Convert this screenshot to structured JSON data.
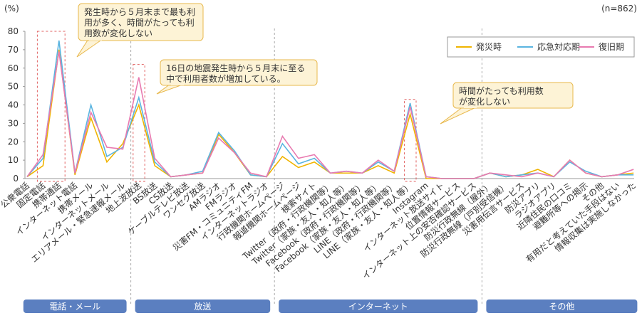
{
  "chart_data": {
    "type": "line",
    "y_unit_label": "(%)",
    "note": "(n=862)",
    "categories": [
      "公衆電話",
      "固定電話",
      "携帯通話",
      "インターネット電話",
      "携帯メール",
      "インターネットメール",
      "エリアメール・緊急速報メール",
      "地上波放送",
      "BS放送",
      "CS放送",
      "ケーブルテレビ放送",
      "ワンセグ放送",
      "AMラジオ",
      "FMラジオ",
      "災害FM・コミュニティFM",
      "インターネットラジオ",
      "行政機関ホームページ",
      "報道機関ホームページ",
      "検索サイト",
      "Twitter（政府・行政機関等）",
      "Twitter（家族・友人・知人等）",
      "Facebook（政府・行政機関等）",
      "Facebook（家族・友人・知人等）",
      "LINE（政府・行政機関等）",
      "LINE（家族・友人・知人等）",
      "Instagram",
      "インターネット放送サイト",
      "位置情報サービス",
      "インターネット上の安否確認サービス",
      "防災行政無線（屋外）",
      "防災行政無線（戸別受信機）",
      "災害用伝言サービス",
      "防災アプリ",
      "ラジオアプリ",
      "近隣住民の口コミ",
      "避難所等への掲示",
      "その他",
      "有用だと考えていた手段はない",
      "情報収集は実施しなかった"
    ],
    "series": [
      {
        "name": "発災時",
        "color": "#f0b400",
        "values": [
          1,
          7,
          70,
          2,
          33,
          9,
          19,
          40,
          7,
          1,
          2,
          3,
          24,
          14,
          2,
          1,
          12,
          6,
          9,
          3,
          3,
          3,
          7,
          3,
          35,
          0,
          0,
          0,
          0,
          3,
          1,
          2,
          5,
          1,
          10,
          3,
          1,
          2,
          3
        ]
      },
      {
        "name": "応急対応期",
        "color": "#5ab4e0",
        "values": [
          1,
          11,
          75,
          3,
          40,
          12,
          17,
          44,
          9,
          1,
          2,
          4,
          25,
          15,
          2,
          1,
          19,
          8,
          11,
          3,
          4,
          3,
          9,
          4,
          41,
          1,
          0,
          0,
          0,
          3,
          1,
          2,
          3,
          1,
          9,
          4,
          1,
          2,
          2
        ]
      },
      {
        "name": "復旧期",
        "color": "#e87ab0",
        "values": [
          1,
          13,
          69,
          3,
          36,
          17,
          16,
          55,
          11,
          1,
          2,
          3,
          22,
          14,
          3,
          1,
          23,
          11,
          13,
          3,
          4,
          3,
          10,
          4,
          39,
          1,
          0,
          0,
          0,
          3,
          2,
          1,
          3,
          1,
          10,
          3,
          1,
          2,
          5
        ]
      }
    ],
    "groups": [
      "電話・メール",
      "放送",
      "インターネット",
      "その他"
    ],
    "annotations": [
      [
        "発生時から５月末まで最も利",
        "用が多く、時間がたっても利",
        "用数が変化しない"
      ],
      [
        "16日の地震発生時から５月末に至る",
        "中で利用者数が増加している。"
      ],
      [
        "時間がたっても利用数",
        "が変化しない"
      ]
    ],
    "ylim": [
      0,
      80
    ],
    "yticks": [
      0,
      10,
      20,
      30,
      40,
      50,
      60,
      70,
      80
    ],
    "legend": "upper right",
    "grid": false
  }
}
